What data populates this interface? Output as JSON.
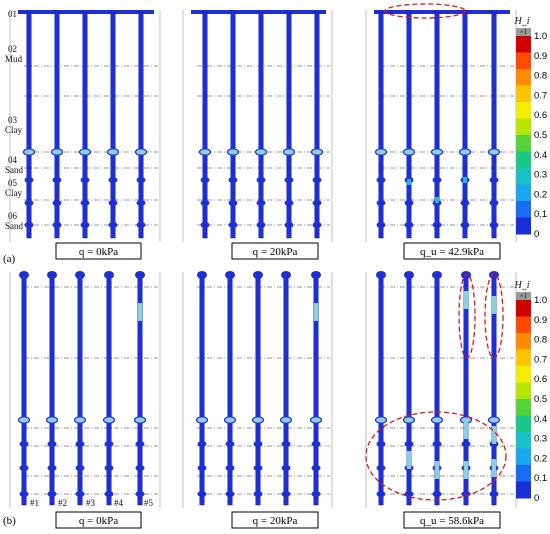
{
  "panels": {
    "a": {
      "tag": "(a)",
      "captions": [
        "q = 0kPa",
        "q = 20kPa",
        "q_u = 42.9kPa"
      ],
      "layers": [
        {
          "code": "01",
          "name": ""
        },
        {
          "code": "02",
          "name": "Mud"
        },
        {
          "code": "03",
          "name": "Clay"
        },
        {
          "code": "04",
          "name": "Sand"
        },
        {
          "code": "05",
          "name": "Clay"
        },
        {
          "code": "06",
          "name": "Sand"
        }
      ]
    },
    "b": {
      "tag": "(b)",
      "captions": [
        "q = 0kPa",
        "q = 20kPa",
        "q_u = 58.6kPa"
      ],
      "pile_labels": [
        "#1",
        "#2",
        "#3",
        "#4",
        "#5"
      ]
    }
  },
  "colorbar": {
    "title": "H_i",
    "multiplier": "×1",
    "ticks": [
      "1.0",
      "0.9",
      "0.8",
      "0.7",
      "0.6",
      "0.5",
      "0.4",
      "0.3",
      "0.2",
      "0.1",
      "0"
    ],
    "colors": [
      "#d00000",
      "#ff4a00",
      "#ff8c00",
      "#ffc400",
      "#f3ee00",
      "#b4e600",
      "#55d23c",
      "#1ac98a",
      "#19c2c6",
      "#1aa7f0",
      "#1b6cf5",
      "#1a2ed6"
    ]
  },
  "colors": {
    "pile": "#1f2fd6",
    "pile_edge": "#0c18b8",
    "damage_low": "#22b8e6",
    "damage_mid": "#8ad1e0",
    "dash_marker": "#e01515"
  }
}
